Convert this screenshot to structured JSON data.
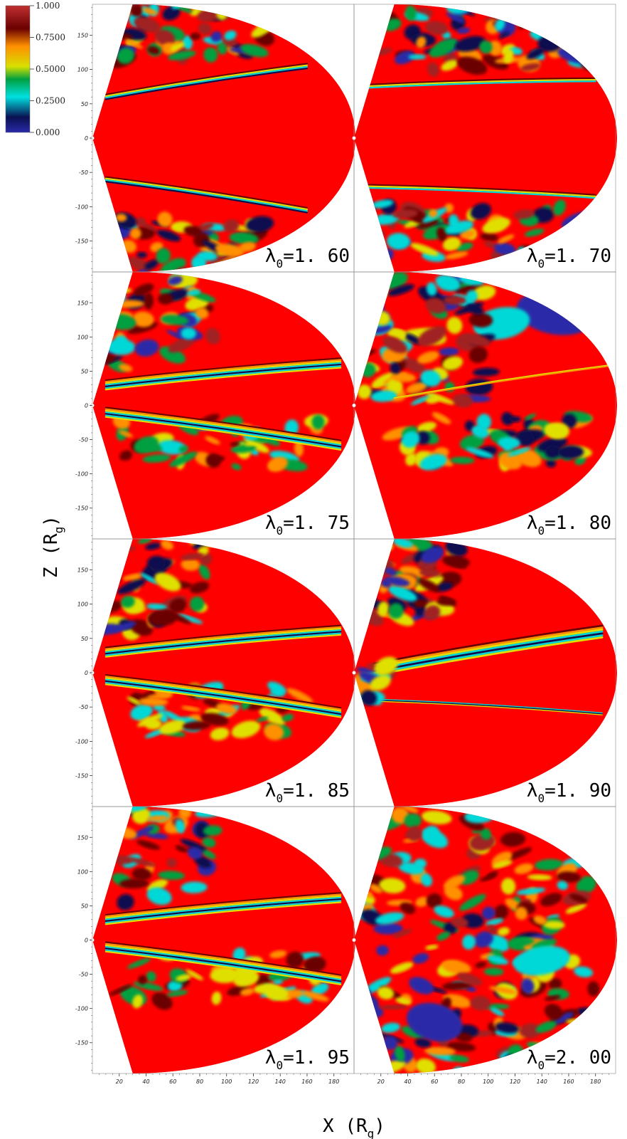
{
  "chart_data": {
    "type": "heatmap",
    "grid": "2x4 panels",
    "xlabel": "X",
    "xlabel_unit": "R",
    "xlabel_unit_sub": "g",
    "ylabel": "Z",
    "ylabel_unit": "R",
    "ylabel_unit_sub": "g",
    "x_range": [
      0,
      195
    ],
    "y_range": [
      -195,
      195
    ],
    "x_ticks": [
      20,
      40,
      60,
      80,
      100,
      120,
      140,
      160,
      180
    ],
    "y_ticks": [
      150,
      100,
      50,
      0,
      -50,
      -100,
      -150
    ],
    "colorbar": {
      "min": 0.0,
      "max": 1.0,
      "tick_values": [
        1.0,
        0.75,
        0.5,
        0.25,
        0.0
      ],
      "tick_labels": [
        "1.000",
        "0.7500",
        "0.5000",
        "0.2500",
        "0.000"
      ],
      "colors": [
        "#2a2aa8",
        "#0a1050",
        "#00e0e0",
        "#00a040",
        "#d8e000",
        "#ff9000",
        "#6a0000",
        "#c03030"
      ]
    },
    "panels": [
      {
        "param": "λ",
        "sub": "0",
        "value": "=1. 60",
        "style": "ordered"
      },
      {
        "param": "λ",
        "sub": "0",
        "value": "=1. 70",
        "style": "ordered-wide"
      },
      {
        "param": "λ",
        "sub": "0",
        "value": "=1. 75",
        "style": "wedge-disc"
      },
      {
        "param": "λ",
        "sub": "0",
        "value": "=1. 80",
        "style": "turbulent-top"
      },
      {
        "param": "λ",
        "sub": "0",
        "value": "=1. 85",
        "style": "wedge-disc"
      },
      {
        "param": "λ",
        "sub": "0",
        "value": "=1. 90",
        "style": "thin-wedge"
      },
      {
        "param": "λ",
        "sub": "0",
        "value": "=1. 95",
        "style": "wedge-disc"
      },
      {
        "param": "λ",
        "sub": "0",
        "value": "=2. 00",
        "style": "turbulent-all"
      }
    ]
  }
}
